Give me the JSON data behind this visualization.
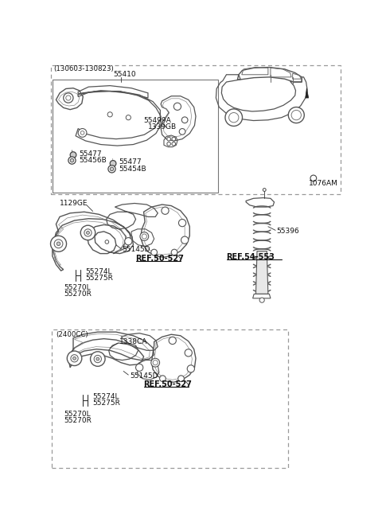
{
  "bg_color": "#ffffff",
  "fig_width": 4.8,
  "fig_height": 6.66,
  "dpi": 100,
  "top_box_label": "(130603-130823)",
  "part_55410": "55410",
  "part_55499A": "55499A",
  "part_1339GB": "1339GB",
  "part_55477a": "55477",
  "part_55456B": "55456B",
  "part_55477b": "55477",
  "part_55454B": "55454B",
  "part_1076AM": "1076AM",
  "part_1129GE": "1129GE",
  "part_55145D_mid": "55145D",
  "part_REF50527_mid": "REF.50-527",
  "part_55274L_mid": "55274L",
  "part_55275R_mid": "55275R",
  "part_55270L_mid": "55270L",
  "part_55270R_mid": "55270R",
  "part_55396": "55396",
  "part_REF54553": "REF.54-553",
  "bottom_box_label": "(2400CC)",
  "part_1338CA": "1338CA",
  "part_55145D_bot": "55145D",
  "part_REF50527_bot": "REF.50-527",
  "part_55274L_bot": "55274L",
  "part_55275R_bot": "55275R",
  "part_55270L_bot": "55270L",
  "part_55270R_bot": "55270R",
  "lc": "#333333",
  "tc": "#111111",
  "fs": 6.5
}
